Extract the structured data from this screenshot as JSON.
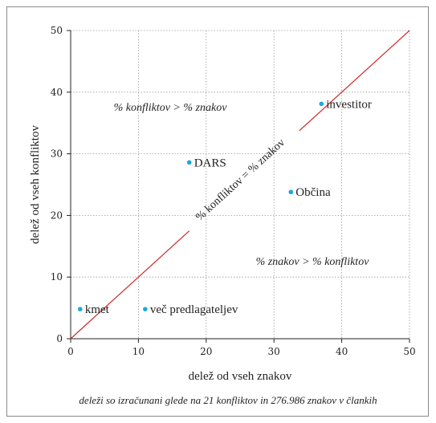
{
  "chart_data": {
    "type": "scatter",
    "xlabel": "delež od vseh znakov",
    "ylabel": "delež od vseh konfliktov",
    "xlim": [
      0,
      50
    ],
    "ylim": [
      0,
      50
    ],
    "x_ticks": [
      "0",
      "10",
      "20",
      "30",
      "40",
      "50"
    ],
    "y_ticks": [
      "0",
      "10",
      "20",
      "30",
      "40",
      "50"
    ],
    "grid": true,
    "points": [
      {
        "label": "kmet",
        "x": 1.4,
        "y": 4.8
      },
      {
        "label": "več predlagateljev",
        "x": 11.0,
        "y": 4.8
      },
      {
        "label": "DARS",
        "x": 17.5,
        "y": 28.6
      },
      {
        "label": "Občina",
        "x": 32.5,
        "y": 23.8
      },
      {
        "label": "investitor",
        "x": 37.0,
        "y": 38.1
      }
    ],
    "reference_line": {
      "label": "% konfliktov = % znakov",
      "from": [
        0,
        0
      ],
      "to": [
        50,
        50
      ]
    },
    "annotations": [
      "% konfliktov > % znakov",
      "% znakov > % konfliktov"
    ],
    "note": "deleži so izračunani glede na 21 konfliktov in 276.986 znakov v člankih"
  },
  "colors": {
    "points": "#1aa7e0",
    "reference_line": "#cc2a2a",
    "grid": "#9a9a9a"
  }
}
